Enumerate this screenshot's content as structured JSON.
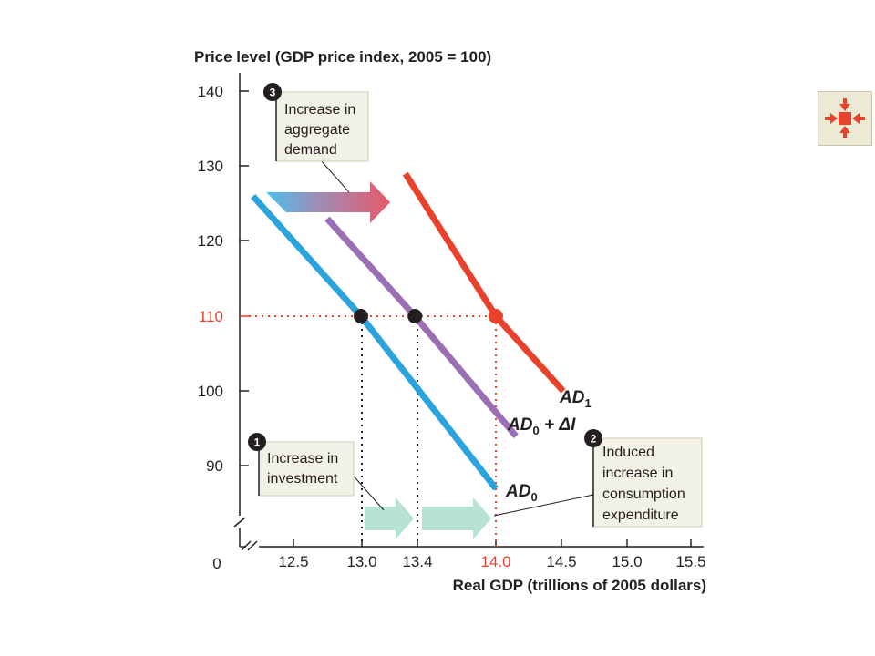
{
  "chart_data": {
    "type": "line",
    "y_title": "Price level (GDP price index, 2005 = 100)",
    "x_title": "Real GDP (trillions of 2005 dollars)",
    "origin_label": "0",
    "x_ticks": [
      "12.5",
      "13.0",
      "13.4",
      "14.0",
      "14.5",
      "15.0",
      "15.5"
    ],
    "y_ticks": [
      "140",
      "130",
      "120",
      "110",
      "100",
      "90"
    ],
    "xlim": [
      12.2,
      15.6
    ],
    "ylim": [
      83,
      142
    ],
    "highlight_price": 110,
    "highlight_gdp": 14.0,
    "series": [
      {
        "label_main": "AD",
        "label_sub": "0",
        "label_extra": "",
        "color": "#2ba3dd",
        "points": [
          [
            12.2,
            126
          ],
          [
            13.0,
            110
          ],
          [
            14.0,
            87
          ]
        ]
      },
      {
        "label_main": "AD",
        "label_sub": "0",
        "label_extra": " + ΔI",
        "color": "#9b6fb5",
        "points": [
          [
            12.75,
            123
          ],
          [
            13.4,
            110
          ],
          [
            14.15,
            94
          ]
        ]
      },
      {
        "label_main": "AD",
        "label_sub": "1",
        "label_extra": "",
        "color": "#e8412c",
        "points": [
          [
            13.33,
            129
          ],
          [
            14.0,
            110
          ],
          [
            14.5,
            100
          ]
        ]
      }
    ],
    "equilibrium_points": [
      {
        "gdp": 13.0,
        "price": 110,
        "color": "#231f20"
      },
      {
        "gdp": 13.4,
        "price": 110,
        "color": "#231f20"
      },
      {
        "gdp": 14.0,
        "price": 110,
        "color": "#e8412c"
      }
    ],
    "callouts": [
      {
        "number": "1",
        "lines": [
          "Increase in",
          "investment"
        ]
      },
      {
        "number": "2",
        "lines": [
          "Induced",
          "increase in",
          "consumption",
          "expenditure"
        ]
      },
      {
        "number": "3",
        "lines": [
          "Increase in",
          "aggregate",
          "demand"
        ]
      }
    ],
    "colors": {
      "axis": "#231f20",
      "highlight": "#e8412c",
      "callout_bg": "#f2f1e6",
      "green_arrow": "#b6e3d3",
      "badge": "#231f20"
    }
  },
  "nav_button": {
    "icon": "collapse-arrows-icon",
    "color": "#e8412c"
  }
}
